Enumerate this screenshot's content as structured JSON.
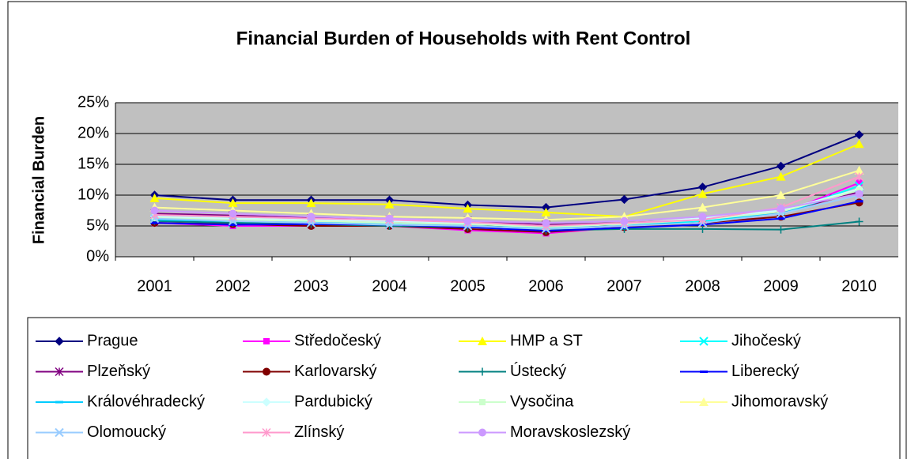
{
  "chart_data": {
    "type": "line",
    "title": "Financial Burden of Households with Rent Control",
    "y_label": "Financial Burden",
    "categories": [
      "2001",
      "2002",
      "2003",
      "2004",
      "2005",
      "2006",
      "2007",
      "2008",
      "2009",
      "2010"
    ],
    "ylim": [
      0,
      25
    ],
    "yticks": [
      {
        "value": 0,
        "label": "0%"
      },
      {
        "value": 5,
        "label": "5%"
      },
      {
        "value": 10,
        "label": "10%"
      },
      {
        "value": 15,
        "label": "15%"
      },
      {
        "value": 20,
        "label": "20%"
      },
      {
        "value": 25,
        "label": "25%"
      }
    ],
    "grid": true,
    "legend": "bottom",
    "series": [
      {
        "name": "Prague",
        "color": "#000080",
        "marker": "diamond",
        "values": [
          10,
          9.2,
          9.2,
          9.2,
          8.4,
          8,
          9.3,
          11.3,
          14.7,
          19.8
        ]
      },
      {
        "name": "Středočeský",
        "color": "#ff00ff",
        "marker": "square",
        "values": [
          5.5,
          5,
          5,
          5,
          4.3,
          3.8,
          4.8,
          5.5,
          7,
          12
        ]
      },
      {
        "name": "HMP a ST",
        "color": "#ffff00",
        "marker": "triangle",
        "values": [
          9.5,
          8.7,
          8.7,
          8.5,
          7.8,
          7.2,
          6.5,
          10.2,
          13,
          18.3
        ]
      },
      {
        "name": "Jihočeský",
        "color": "#00ffff",
        "marker": "x",
        "values": [
          6,
          5.5,
          5.5,
          5.2,
          5,
          4.5,
          5,
          5.8,
          7,
          11.5
        ]
      },
      {
        "name": "Plzeňský",
        "color": "#800080",
        "marker": "star",
        "values": [
          7,
          6.7,
          6.3,
          6,
          5.8,
          5.2,
          5.5,
          6,
          7.2,
          10.5
        ]
      },
      {
        "name": "Karlovarský",
        "color": "#800000",
        "marker": "circle",
        "values": [
          5.5,
          5.3,
          5,
          5,
          4.5,
          4,
          4.8,
          5.5,
          6.5,
          8.8
        ]
      },
      {
        "name": "Ústecký",
        "color": "#008080",
        "marker": "plus",
        "values": [
          5.8,
          5.5,
          5.3,
          5,
          4.8,
          4.3,
          4.5,
          4.5,
          4.4,
          5.7
        ]
      },
      {
        "name": "Liberecký",
        "color": "#0000ff",
        "marker": "dash",
        "values": [
          5.5,
          5.2,
          5.3,
          5.2,
          4.8,
          4.2,
          4.7,
          5.2,
          6.2,
          9
        ]
      },
      {
        "name": "Královéhradecký",
        "color": "#00ccff",
        "marker": "dash",
        "values": [
          6,
          5.8,
          5.6,
          5.3,
          5,
          4.6,
          5,
          6,
          7,
          11
        ]
      },
      {
        "name": "Pardubický",
        "color": "#ccffff",
        "marker": "diamond",
        "values": [
          6.5,
          6.2,
          6,
          5.8,
          5.5,
          5,
          5.3,
          6.3,
          7.5,
          11
        ]
      },
      {
        "name": "Vysočina",
        "color": "#ccffcc",
        "marker": "square",
        "values": [
          6.3,
          6,
          5.8,
          5.5,
          5.3,
          4.8,
          5.3,
          6,
          7.3,
          10.8
        ]
      },
      {
        "name": "Jihomoravský",
        "color": "#ffff99",
        "marker": "triangle",
        "values": [
          8,
          7.5,
          7,
          6.5,
          6.3,
          6,
          6.5,
          8,
          10,
          14
        ]
      },
      {
        "name": "Olomoucký",
        "color": "#99ccff",
        "marker": "x",
        "values": [
          6.2,
          5.8,
          5.5,
          5.2,
          5,
          4.5,
          5,
          5.5,
          7,
          10
        ]
      },
      {
        "name": "Zlínský",
        "color": "#ff99cc",
        "marker": "star",
        "values": [
          6.8,
          6.5,
          6.2,
          6,
          5.6,
          5,
          5.5,
          6,
          8,
          13
        ]
      },
      {
        "name": "Moravskoslezský",
        "color": "#cc99ff",
        "marker": "circle",
        "values": [
          7.5,
          7,
          6.5,
          6.2,
          5.8,
          5.5,
          5.8,
          6.5,
          7.8,
          10.2
        ]
      }
    ]
  }
}
